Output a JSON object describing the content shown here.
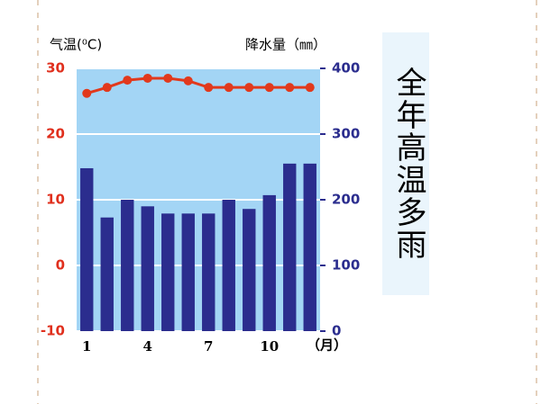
{
  "chart_data": {
    "type": "bar",
    "ylabel": "气温(⁰C)",
    "y2label": "降水量（㎜）",
    "xlabel": "（月）",
    "annotation": "全年高温多雨",
    "categories": [
      "1",
      null,
      null,
      "4",
      null,
      null,
      "7",
      null,
      null,
      "10",
      null,
      null
    ],
    "series": [
      {
        "type": "bar",
        "axis": "y2",
        "color": "#2b2d8e",
        "values": [
          248,
          173,
          200,
          190,
          179,
          179,
          179,
          200,
          186,
          207,
          255,
          255
        ]
      },
      {
        "type": "line",
        "color": "#e2391c",
        "values": [
          26.2,
          27.1,
          28.2,
          28.5,
          28.5,
          28.1,
          27.1,
          27.1,
          27.1,
          27.1,
          27.1,
          27.1
        ]
      }
    ],
    "ylim": [
      -10,
      30
    ],
    "yticks": [
      -10,
      0,
      10,
      20,
      30
    ],
    "y2lim": [
      0,
      400
    ],
    "y2ticks": [
      0,
      100,
      200,
      300,
      400
    ],
    "grid": true,
    "background": "#a3d5f5",
    "ycolor": "#e0301e",
    "y2color": "#2b2d8e"
  }
}
